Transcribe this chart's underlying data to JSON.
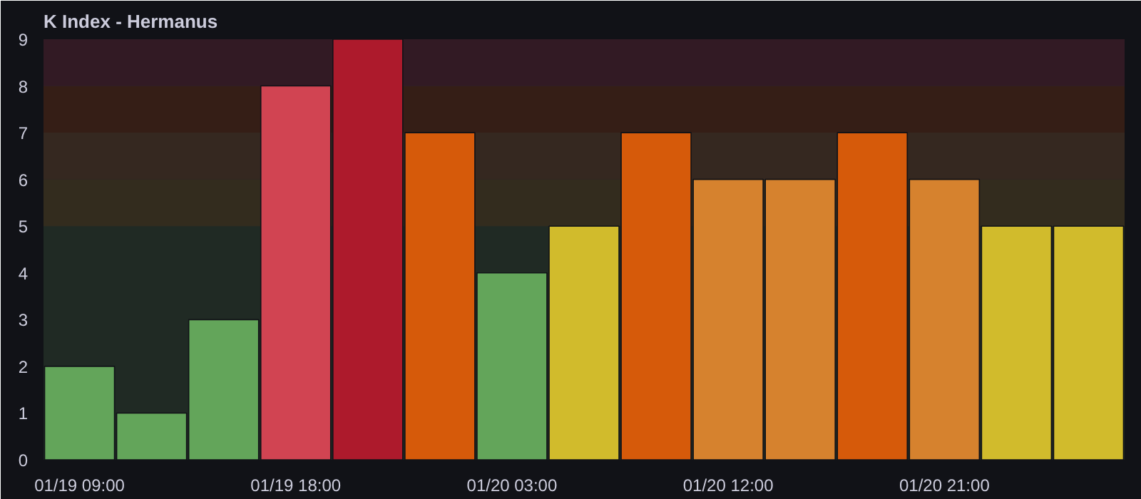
{
  "chart_data": {
    "type": "bar",
    "title": "K Index - Hermanus",
    "categories": [
      "01/19 09:00",
      null,
      null,
      "01/19 18:00",
      null,
      null,
      "01/20 03:00",
      null,
      null,
      "01/20 12:00",
      null,
      null,
      "01/20 21:00",
      null,
      null
    ],
    "values": [
      2,
      1,
      3,
      8,
      9,
      7,
      4,
      5,
      7,
      6,
      6,
      7,
      6,
      5,
      5
    ],
    "colors": [
      "#63a55a",
      "#63a55a",
      "#63a55a",
      "#d14452",
      "#ad1a2c",
      "#d65a0a",
      "#63a55a",
      "#d1bb2c",
      "#d65a0a",
      "#d6822e",
      "#d6822e",
      "#d65a0a",
      "#d6822e",
      "#d1bb2c",
      "#d1bb2c"
    ],
    "ylim": [
      0,
      9
    ],
    "yticks": [
      0,
      1,
      2,
      3,
      4,
      5,
      6,
      7,
      8,
      9
    ],
    "grid": "y",
    "bands": [
      {
        "axis": "y",
        "from": 0,
        "to": 5,
        "color": "#202a24"
      },
      {
        "axis": "y",
        "from": 5,
        "to": 6,
        "color": "#332c1e"
      },
      {
        "axis": "y",
        "from": 6,
        "to": 7,
        "color": "#352820"
      },
      {
        "axis": "y",
        "from": 7,
        "to": 8,
        "color": "#351e16"
      },
      {
        "axis": "y",
        "from": 8,
        "to": 9,
        "color": "#321a24"
      }
    ]
  }
}
